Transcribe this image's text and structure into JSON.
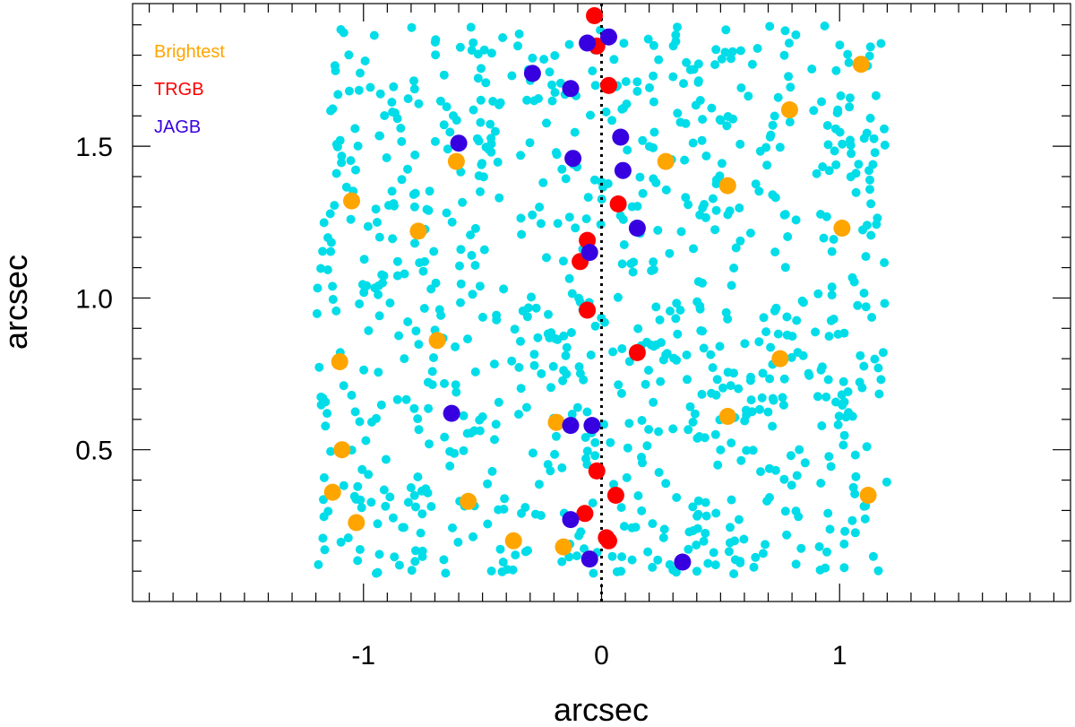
{
  "chart_data": {
    "type": "scatter",
    "title": "",
    "xlabel": "arcsec",
    "ylabel": "arcsec",
    "xlim": [
      -1.97,
      1.97
    ],
    "ylim": [
      0.0,
      1.97
    ],
    "xticks": [
      -1,
      0,
      1
    ],
    "xtick_labels": [
      "-1",
      "0",
      "1"
    ],
    "yticks": [
      0.5,
      1.0,
      1.5
    ],
    "ytick_labels": [
      "0.5",
      "1.0",
      "1.5"
    ],
    "vline": {
      "x": 0,
      "style": "dotted",
      "color": "#000000"
    },
    "background": {
      "name": "stars",
      "color": "#00dde8",
      "count": 900,
      "x_range": [
        -1.2,
        1.2
      ],
      "y_range": [
        0.09,
        1.9
      ]
    },
    "legend_position": "top-left",
    "series": [
      {
        "name": "Brightest",
        "color": "#ffa500",
        "points": [
          [
            1.09,
            1.77
          ],
          [
            0.79,
            1.62
          ],
          [
            -0.61,
            1.45
          ],
          [
            0.27,
            1.45
          ],
          [
            0.53,
            1.37
          ],
          [
            -1.05,
            1.32
          ],
          [
            -0.77,
            1.22
          ],
          [
            1.01,
            1.23
          ],
          [
            -0.69,
            0.86
          ],
          [
            -1.1,
            0.79
          ],
          [
            0.75,
            0.8
          ],
          [
            -0.19,
            0.59
          ],
          [
            0.53,
            0.61
          ],
          [
            -1.09,
            0.5
          ],
          [
            -1.13,
            0.36
          ],
          [
            -0.56,
            0.33
          ],
          [
            1.12,
            0.35
          ],
          [
            -1.03,
            0.26
          ],
          [
            -0.37,
            0.2
          ],
          [
            -0.16,
            0.18
          ]
        ]
      },
      {
        "name": "TRGB",
        "color": "#ff0000",
        "points": [
          [
            -0.03,
            1.93
          ],
          [
            -0.02,
            1.83
          ],
          [
            0.03,
            1.7
          ],
          [
            0.07,
            1.31
          ],
          [
            -0.06,
            1.19
          ],
          [
            -0.09,
            1.12
          ],
          [
            -0.06,
            0.96
          ],
          [
            0.15,
            0.82
          ],
          [
            -0.02,
            0.43
          ],
          [
            0.06,
            0.35
          ],
          [
            -0.07,
            0.29
          ],
          [
            0.02,
            0.21
          ],
          [
            0.03,
            0.2
          ]
        ]
      },
      {
        "name": "JAGB",
        "color": "#3700e0",
        "points": [
          [
            -0.06,
            1.84
          ],
          [
            0.03,
            1.86
          ],
          [
            -0.29,
            1.74
          ],
          [
            -0.13,
            1.69
          ],
          [
            -0.6,
            1.51
          ],
          [
            0.08,
            1.53
          ],
          [
            -0.12,
            1.46
          ],
          [
            0.09,
            1.42
          ],
          [
            0.15,
            1.23
          ],
          [
            -0.05,
            1.15
          ],
          [
            -0.63,
            0.62
          ],
          [
            -0.13,
            0.58
          ],
          [
            -0.04,
            0.58
          ],
          [
            -0.13,
            0.27
          ],
          [
            -0.05,
            0.14
          ],
          [
            0.34,
            0.13
          ]
        ]
      }
    ]
  }
}
